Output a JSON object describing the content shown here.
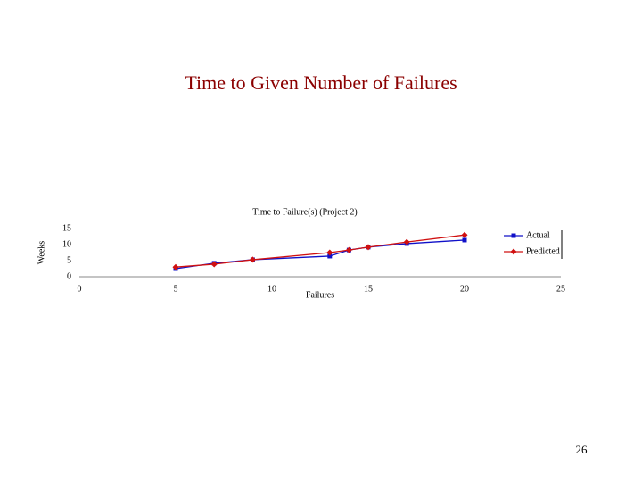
{
  "slide_title": "Time to Given Number of Failures",
  "page_number": "26",
  "chart_data": {
    "type": "line",
    "title": "Time to Failure(s) (Project 2)",
    "x_label": "Failures",
    "y_label": "Weeks",
    "x": [
      5,
      7,
      9,
      13,
      14,
      15,
      17,
      20
    ],
    "series": [
      {
        "name": "Actual",
        "color": "#1010c8",
        "marker": "square",
        "values": [
          2.5,
          4.2,
          5.3,
          6.4,
          8.3,
          9.2,
          10.3,
          11.4
        ]
      },
      {
        "name": "Predicted",
        "color": "#d01010",
        "marker": "diamond",
        "values": [
          3.0,
          3.9,
          5.3,
          7.5,
          8.3,
          9.2,
          10.8,
          13.0
        ]
      }
    ],
    "xlim": [
      0,
      25
    ],
    "xticks": [
      0,
      5,
      10,
      15,
      20,
      25
    ],
    "ylim": [
      0,
      15
    ],
    "yticks": [
      0,
      5,
      10,
      15
    ],
    "grid": false,
    "legend": "right"
  }
}
